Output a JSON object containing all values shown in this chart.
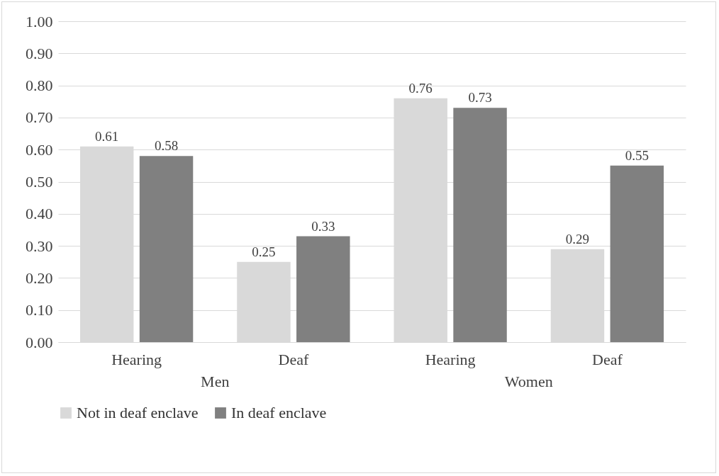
{
  "chart_data": {
    "type": "bar",
    "categories": [
      "Hearing",
      "Deaf",
      "Hearing",
      "Deaf"
    ],
    "series": [
      {
        "name": "Not in deaf enclave",
        "color": "#d9d9d9",
        "values": [
          0.61,
          0.25,
          0.76,
          0.29
        ]
      },
      {
        "name": "In deaf enclave",
        "color": "#808080",
        "values": [
          0.58,
          0.33,
          0.73,
          0.55
        ]
      }
    ],
    "annotations": [
      "Men",
      "Women"
    ],
    "ylim": [
      0,
      1
    ],
    "yticks": [
      {
        "value": 0,
        "label": "0.00"
      },
      {
        "value": 0.1,
        "label": "0.10"
      },
      {
        "value": 0.2,
        "label": "0.20"
      },
      {
        "value": 0.3,
        "label": "0.30"
      },
      {
        "value": 0.4,
        "label": "0.40"
      },
      {
        "value": 0.5,
        "label": "0.50"
      },
      {
        "value": 0.6,
        "label": "0.60"
      },
      {
        "value": 0.7,
        "label": "0.70"
      },
      {
        "value": 0.8,
        "label": "0.80"
      },
      {
        "value": 0.9,
        "label": "0.90"
      },
      {
        "value": 1,
        "label": "1.00"
      }
    ],
    "grid": true,
    "data_labels": true,
    "legend": "bottom"
  }
}
